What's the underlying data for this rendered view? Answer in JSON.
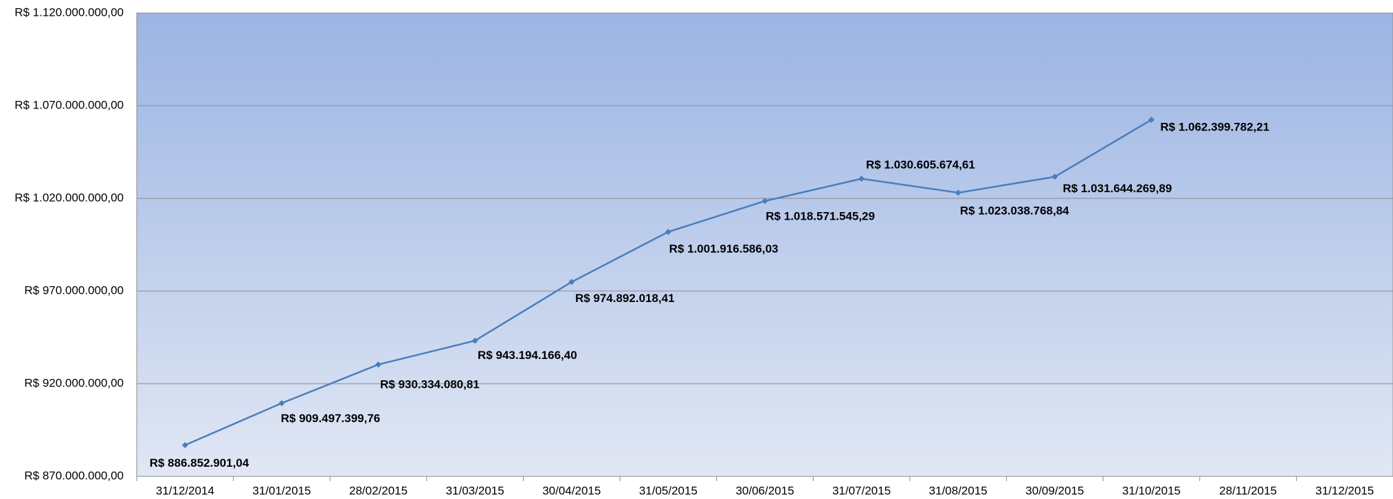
{
  "chart_data": {
    "type": "line",
    "categories": [
      "31/12/2014",
      "31/01/2015",
      "28/02/2015",
      "31/03/2015",
      "30/04/2015",
      "31/05/2015",
      "30/06/2015",
      "31/07/2015",
      "31/08/2015",
      "30/09/2015",
      "31/10/2015",
      "28/11/2015",
      "31/12/2015"
    ],
    "series": [
      {
        "color": "#4a7ebb",
        "values": [
          886852901.04,
          909497399.76,
          930334080.81,
          943194166.4,
          974892018.41,
          1001916586.03,
          1018571545.29,
          1030605674.61,
          1023038768.84,
          1031644269.89,
          1062399782.21,
          null,
          null
        ],
        "value_labels": [
          "R$ 886.852.901,04",
          "R$ 909.497.399,76",
          "R$ 930.334.080,81",
          "R$ 943.194.166,40",
          "R$ 974.892.018,41",
          "R$ 1.001.916.586,03",
          "R$ 1.018.571.545,29",
          "R$ 1.030.605.674,61",
          "R$ 1.023.038.768,84",
          "R$ 1.031.644.269,89",
          "R$ 1.062.399.782,21",
          null,
          null
        ]
      }
    ],
    "ylim": [
      870000000,
      1120000000
    ],
    "yticks": [
      {
        "value": 870000000,
        "label": "R$ 870.000.000,00"
      },
      {
        "value": 920000000,
        "label": "R$ 920.000.000,00"
      },
      {
        "value": 970000000,
        "label": "R$ 970.000.000,00"
      },
      {
        "value": 1020000000,
        "label": "R$ 1.020.000.000,00"
      },
      {
        "value": 1070000000,
        "label": "R$ 1.070.000.000,00"
      },
      {
        "value": 1120000000,
        "label": "R$ 1.120.000.000,00"
      }
    ],
    "grid": true
  }
}
